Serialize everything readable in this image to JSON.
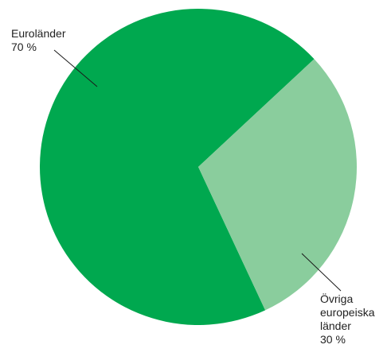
{
  "chart_data": {
    "type": "pie",
    "slices": [
      {
        "label_lines": [
          "Euroländer",
          "70 %"
        ],
        "value": 70,
        "color": "#00a84f"
      },
      {
        "label_lines": [
          "Övriga",
          "europeiska",
          "länder",
          "30 %"
        ],
        "value": 30,
        "color": "#8acd9d"
      }
    ],
    "legend": "none"
  }
}
